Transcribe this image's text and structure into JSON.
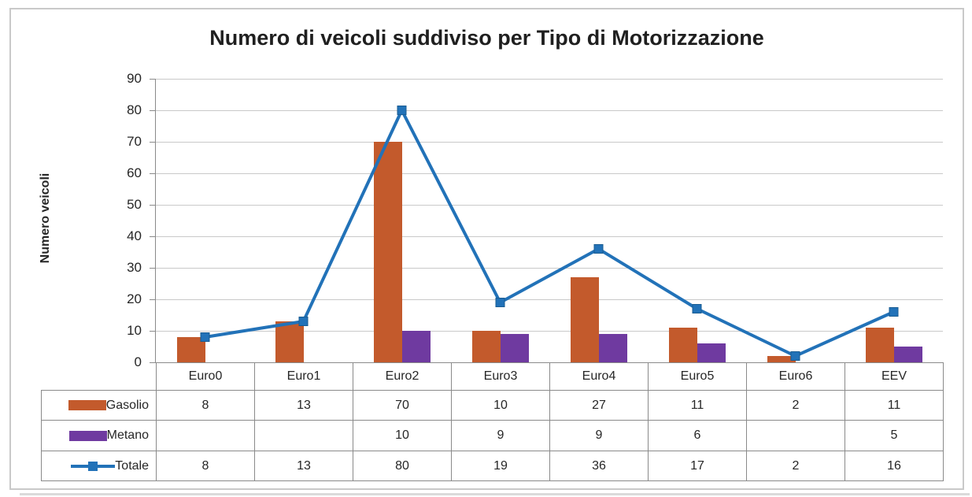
{
  "chart_data": {
    "type": "bar+line",
    "title": "Numero di veicoli suddiviso per Tipo di Motorizzazione",
    "xlabel": "",
    "ylabel": "Numero veicoli",
    "categories": [
      "Euro0",
      "Euro1",
      "Euro2",
      "Euro3",
      "Euro4",
      "Euro5",
      "Euro6",
      "EEV"
    ],
    "series": [
      {
        "name": "Gasolio",
        "type": "bar",
        "color": "#C35A2C",
        "values": [
          8,
          13,
          70,
          10,
          27,
          11,
          2,
          11
        ]
      },
      {
        "name": "Metano",
        "type": "bar",
        "color": "#6F3AA0",
        "values": [
          null,
          null,
          10,
          9,
          9,
          6,
          null,
          5
        ]
      },
      {
        "name": "Totale",
        "type": "line",
        "color": "#2272B8",
        "marker": "square",
        "values": [
          8,
          13,
          80,
          19,
          36,
          17,
          2,
          16
        ]
      }
    ],
    "ylim": [
      0,
      90
    ],
    "yticks": [
      0,
      10,
      20,
      30,
      40,
      50,
      60,
      70,
      80,
      90
    ],
    "grid": true,
    "legend_position": "data-table-left",
    "data_table": true
  },
  "colors": {
    "gasolio": "#C35A2C",
    "metano": "#6F3AA0",
    "totale": "#2272B8",
    "totale_marker_edge": "#1A5C92",
    "grid": "#C9C9C9",
    "axis": "#8A8A8A",
    "table_border": "#8A8A8A",
    "frame_border": "#C9C9C9",
    "text": "#262626",
    "title_text": "#1F1F1F"
  }
}
